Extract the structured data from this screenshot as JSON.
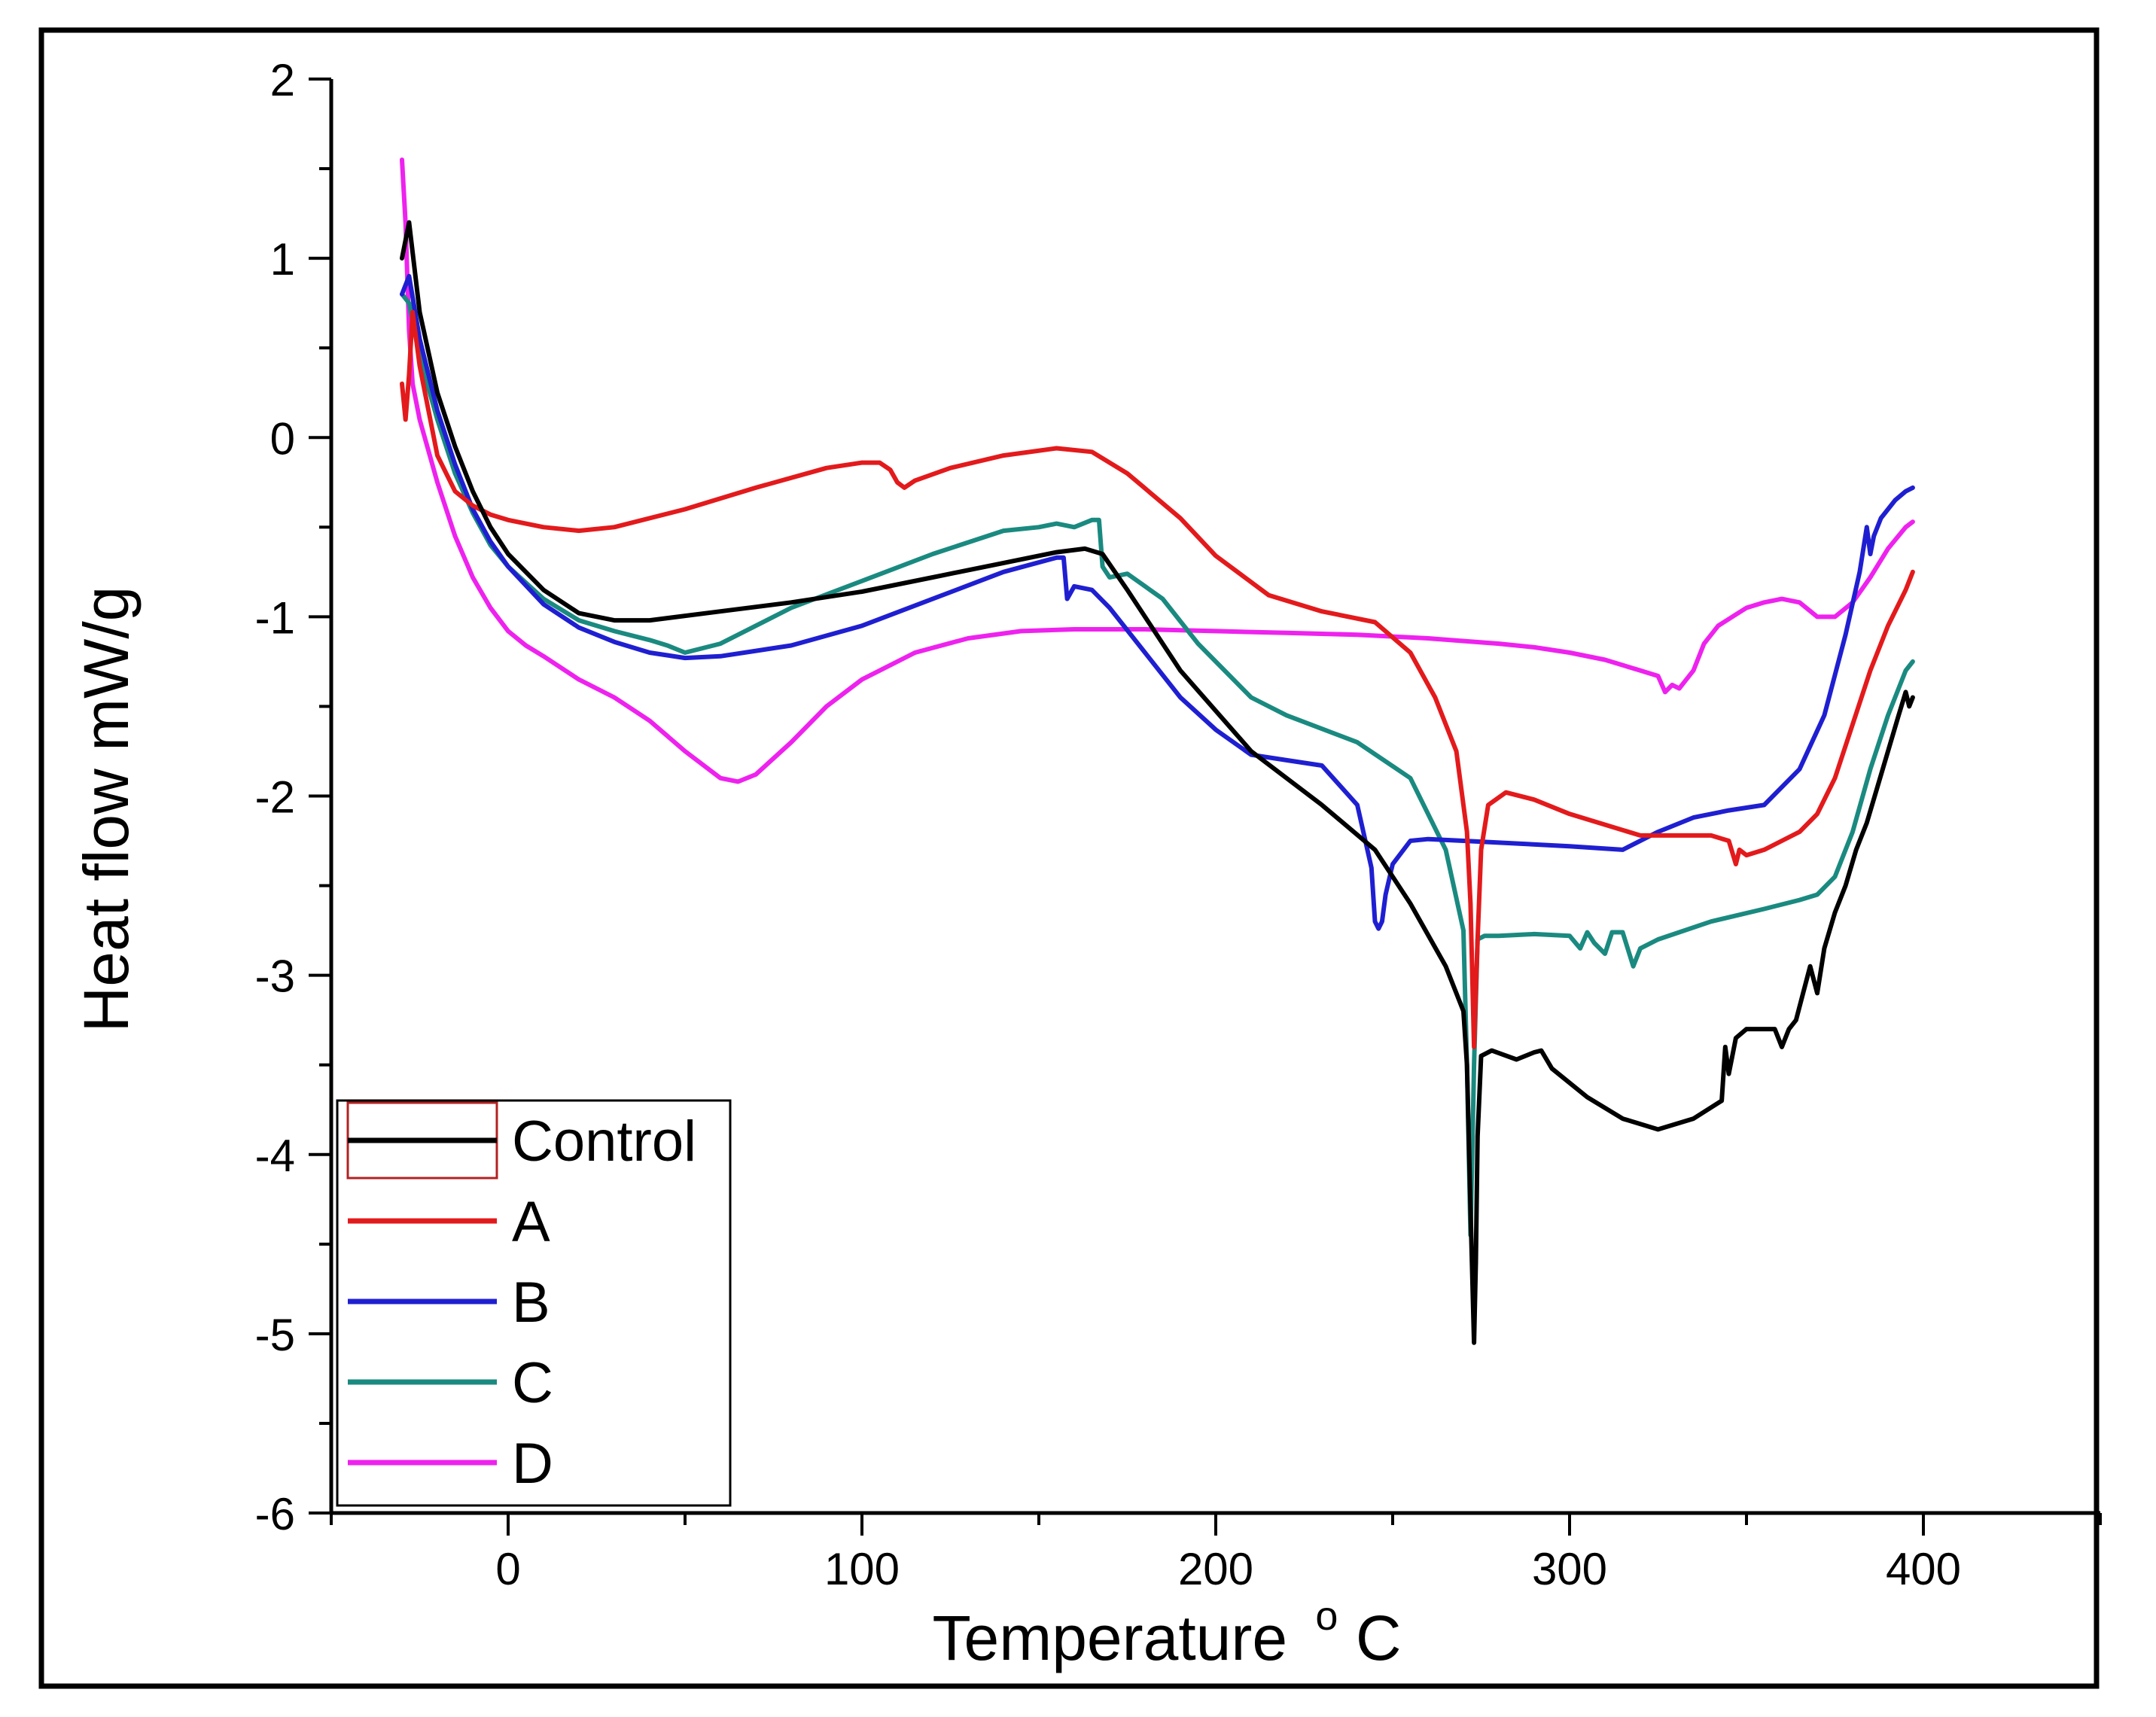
{
  "chart_data": {
    "type": "line",
    "title": "",
    "xlabel": "Temperature",
    "xlabel_superscript": "o",
    "xlabel_unit": "C",
    "ylabel": "Heat flow mW/g",
    "xlim": [
      -50,
      450
    ],
    "ylim": [
      -6,
      2
    ],
    "xticks": [
      0,
      100,
      200,
      300,
      400
    ],
    "yticks": [
      2,
      1,
      0,
      -1,
      -2,
      -3,
      -4,
      -5,
      -6
    ],
    "grid": false,
    "legend_position": "bottom-left",
    "series": [
      {
        "name": "Control",
        "color": "#000000",
        "x": [
          -30,
          -28,
          -25,
          -20,
          -15,
          -10,
          -5,
          0,
          10,
          20,
          30,
          40,
          60,
          80,
          100,
          120,
          140,
          155,
          163,
          168,
          175,
          190,
          210,
          230,
          245,
          255,
          265,
          270,
          271,
          272,
          273,
          273.5,
          274,
          275,
          278,
          285,
          290,
          292,
          295,
          305,
          315,
          325,
          335,
          343,
          344,
          345,
          347,
          350,
          355,
          358,
          360,
          362,
          364,
          366,
          368,
          370,
          372,
          375,
          378,
          381,
          384,
          387,
          390,
          393,
          395,
          396,
          397
        ],
        "y": [
          1.0,
          1.2,
          0.7,
          0.25,
          -0.05,
          -0.3,
          -0.5,
          -0.65,
          -0.85,
          -0.98,
          -1.02,
          -1.02,
          -0.97,
          -0.92,
          -0.86,
          -0.78,
          -0.7,
          -0.64,
          -0.62,
          -0.65,
          -0.85,
          -1.3,
          -1.75,
          -2.05,
          -2.3,
          -2.6,
          -2.95,
          -3.2,
          -3.5,
          -4.3,
          -5.05,
          -4.6,
          -3.9,
          -3.45,
          -3.42,
          -3.47,
          -3.43,
          -3.42,
          -3.52,
          -3.68,
          -3.8,
          -3.86,
          -3.8,
          -3.7,
          -3.4,
          -3.55,
          -3.35,
          -3.3,
          -3.3,
          -3.3,
          -3.4,
          -3.3,
          -3.25,
          -3.1,
          -2.95,
          -3.1,
          -2.85,
          -2.65,
          -2.5,
          -2.3,
          -2.15,
          -1.95,
          -1.75,
          -1.55,
          -1.42,
          -1.5,
          -1.45
        ]
      },
      {
        "name": "A",
        "color": "#e31a1c",
        "x": [
          -30,
          -29,
          -28,
          -27,
          -25,
          -20,
          -15,
          -10,
          -5,
          0,
          10,
          20,
          30,
          50,
          70,
          90,
          100,
          105,
          108,
          110,
          112,
          115,
          125,
          140,
          155,
          165,
          175,
          190,
          200,
          215,
          230,
          245,
          255,
          262,
          268,
          271,
          272,
          273,
          274,
          275,
          277,
          282,
          290,
          300,
          320,
          340,
          345,
          347,
          348,
          350,
          355,
          360,
          365,
          370,
          375,
          380,
          385,
          390,
          395,
          397
        ],
        "y": [
          0.3,
          0.1,
          0.35,
          0.7,
          0.4,
          -0.1,
          -0.3,
          -0.38,
          -0.43,
          -0.46,
          -0.5,
          -0.52,
          -0.5,
          -0.4,
          -0.28,
          -0.17,
          -0.14,
          -0.14,
          -0.18,
          -0.25,
          -0.28,
          -0.24,
          -0.17,
          -0.1,
          -0.06,
          -0.08,
          -0.2,
          -0.45,
          -0.66,
          -0.88,
          -0.97,
          -1.03,
          -1.2,
          -1.45,
          -1.75,
          -2.2,
          -2.6,
          -3.4,
          -2.8,
          -2.3,
          -2.05,
          -1.98,
          -2.02,
          -2.1,
          -2.22,
          -2.22,
          -2.25,
          -2.38,
          -2.3,
          -2.33,
          -2.3,
          -2.25,
          -2.2,
          -2.1,
          -1.9,
          -1.6,
          -1.3,
          -1.05,
          -0.85,
          -0.75
        ]
      },
      {
        "name": "B",
        "color": "#1f1fd1",
        "x": [
          -30,
          -28,
          -25,
          -20,
          -15,
          -10,
          -5,
          0,
          10,
          20,
          30,
          40,
          50,
          60,
          80,
          100,
          120,
          140,
          155,
          157,
          158,
          160,
          165,
          170,
          180,
          190,
          200,
          210,
          220,
          230,
          240,
          244,
          245,
          246,
          247,
          248,
          250,
          255,
          260,
          270,
          280,
          300,
          315,
          325,
          335,
          345,
          355,
          365,
          372,
          378,
          382,
          384,
          385,
          386,
          388,
          392,
          395,
          397
        ],
        "y": [
          0.8,
          0.9,
          0.55,
          0.15,
          -0.15,
          -0.4,
          -0.58,
          -0.72,
          -0.93,
          -1.06,
          -1.14,
          -1.2,
          -1.23,
          -1.22,
          -1.16,
          -1.05,
          -0.9,
          -0.75,
          -0.67,
          -0.67,
          -0.9,
          -0.83,
          -0.85,
          -0.95,
          -1.2,
          -1.45,
          -1.63,
          -1.77,
          -1.8,
          -1.83,
          -2.05,
          -2.4,
          -2.7,
          -2.74,
          -2.7,
          -2.55,
          -2.38,
          -2.25,
          -2.24,
          -2.25,
          -2.26,
          -2.28,
          -2.3,
          -2.2,
          -2.12,
          -2.08,
          -2.05,
          -1.85,
          -1.55,
          -1.1,
          -0.75,
          -0.5,
          -0.65,
          -0.55,
          -0.45,
          -0.35,
          -0.3,
          -0.28
        ]
      },
      {
        "name": "C",
        "color": "#1a8a80",
        "x": [
          -30,
          -28,
          -25,
          -20,
          -15,
          -10,
          -5,
          0,
          10,
          20,
          30,
          40,
          45,
          50,
          60,
          80,
          100,
          120,
          140,
          150,
          155,
          160,
          165,
          167,
          168,
          170,
          175,
          185,
          195,
          210,
          220,
          240,
          255,
          265,
          270,
          271,
          272,
          273,
          274,
          276,
          280,
          290,
          300,
          303,
          305,
          307,
          310,
          312,
          315,
          318,
          320,
          325,
          340,
          355,
          365,
          370,
          375,
          380,
          385,
          390,
          395,
          397
        ],
        "y": [
          0.8,
          0.75,
          0.45,
          0.1,
          -0.2,
          -0.42,
          -0.6,
          -0.72,
          -0.9,
          -1.02,
          -1.08,
          -1.13,
          -1.16,
          -1.2,
          -1.15,
          -0.95,
          -0.8,
          -0.65,
          -0.52,
          -0.5,
          -0.48,
          -0.5,
          -0.46,
          -0.46,
          -0.72,
          -0.78,
          -0.76,
          -0.9,
          -1.15,
          -1.45,
          -1.55,
          -1.7,
          -1.9,
          -2.3,
          -2.75,
          -3.5,
          -4.45,
          -3.5,
          -2.8,
          -2.78,
          -2.78,
          -2.77,
          -2.78,
          -2.85,
          -2.76,
          -2.82,
          -2.88,
          -2.76,
          -2.76,
          -2.95,
          -2.85,
          -2.8,
          -2.7,
          -2.63,
          -2.58,
          -2.55,
          -2.45,
          -2.2,
          -1.85,
          -1.55,
          -1.3,
          -1.25
        ]
      },
      {
        "name": "D",
        "color": "#ee22ee",
        "x": [
          -30,
          -29,
          -28,
          -27,
          -25,
          -20,
          -15,
          -10,
          -5,
          0,
          5,
          10,
          20,
          30,
          40,
          50,
          60,
          65,
          70,
          80,
          90,
          100,
          115,
          130,
          145,
          160,
          180,
          200,
          220,
          240,
          260,
          280,
          290,
          300,
          310,
          320,
          325,
          327,
          329,
          331,
          333,
          335,
          338,
          342,
          346,
          350,
          355,
          360,
          365,
          370,
          375,
          380,
          385,
          390,
          395,
          397
        ],
        "y": [
          1.55,
          1.2,
          0.6,
          0.3,
          0.1,
          -0.25,
          -0.55,
          -0.78,
          -0.95,
          -1.08,
          -1.16,
          -1.22,
          -1.35,
          -1.45,
          -1.58,
          -1.75,
          -1.9,
          -1.92,
          -1.88,
          -1.7,
          -1.5,
          -1.35,
          -1.2,
          -1.12,
          -1.08,
          -1.07,
          -1.07,
          -1.08,
          -1.09,
          -1.1,
          -1.12,
          -1.15,
          -1.17,
          -1.2,
          -1.24,
          -1.3,
          -1.33,
          -1.42,
          -1.38,
          -1.4,
          -1.35,
          -1.3,
          -1.15,
          -1.05,
          -1.0,
          -0.95,
          -0.92,
          -0.9,
          -0.92,
          -1.0,
          -1.0,
          -0.92,
          -0.78,
          -0.62,
          -0.5,
          -0.47
        ]
      }
    ]
  }
}
